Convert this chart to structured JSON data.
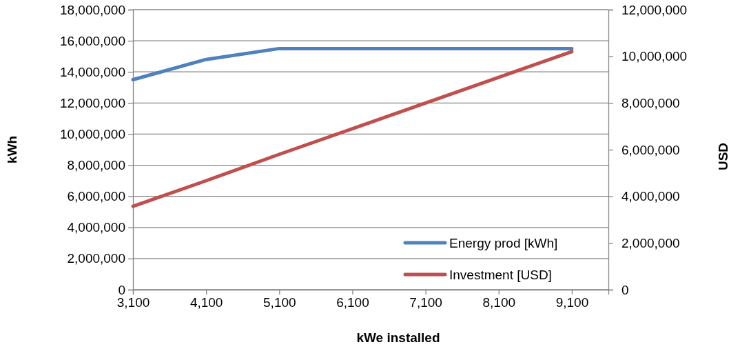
{
  "chart_data": {
    "type": "line",
    "xlabel": "kWe installed",
    "ylabel": "kWh",
    "y2label": "USD",
    "x": [
      3100,
      4100,
      5100,
      6100,
      7100,
      8100,
      9100
    ],
    "series": [
      {
        "name": "Energy prod [kWh]",
        "color": "#4f81bd",
        "values": [
          13500000,
          14800000,
          15500000,
          15500000,
          15500000,
          15500000,
          15500000
        ]
      },
      {
        "name": "Investment [USD]",
        "color": "#c0504d",
        "axis": "y2",
        "values": [
          3570000,
          4670000,
          5800000,
          6900000,
          8000000,
          9100000,
          10200000
        ]
      }
    ],
    "xlim": [
      3100,
      9600
    ],
    "xticks": [
      {
        "value": 3100,
        "label": "3,100"
      },
      {
        "value": 4100,
        "label": "4,100"
      },
      {
        "value": 5100,
        "label": "5,100"
      },
      {
        "value": 6100,
        "label": "6,100"
      },
      {
        "value": 7100,
        "label": "7,100"
      },
      {
        "value": 8100,
        "label": "8,100"
      },
      {
        "value": 9100,
        "label": "9,100"
      }
    ],
    "ylim": [
      0,
      18000000
    ],
    "yticks": [
      0,
      {
        "value": 2000000,
        "label": "2,000,000"
      },
      {
        "value": 4000000,
        "label": "4,000,000"
      },
      {
        "value": 6000000,
        "label": "6,000,000"
      },
      {
        "value": 8000000,
        "label": "8,000,000"
      },
      {
        "value": 10000000,
        "label": "10,000,000"
      },
      {
        "value": 12000000,
        "label": "12,000,000"
      },
      {
        "value": 14000000,
        "label": "14,000,000"
      },
      {
        "value": 16000000,
        "label": "16,000,000"
      },
      {
        "value": 18000000,
        "label": "18,000,000"
      }
    ],
    "y2lim": [
      0,
      12000000
    ],
    "y2ticks": [
      0,
      {
        "value": 2000000,
        "label": "2,000,000"
      },
      {
        "value": 4000000,
        "label": "4,000,000"
      },
      {
        "value": 6000000,
        "label": "6,000,000"
      },
      {
        "value": 8000000,
        "label": "8,000,000"
      },
      {
        "value": 10000000,
        "label": "10,000,000"
      },
      {
        "value": 12000000,
        "label": "12,000,000"
      }
    ],
    "grid": "y",
    "legend": "bottom right",
    "marker": "none",
    "line_style": "solid"
  }
}
